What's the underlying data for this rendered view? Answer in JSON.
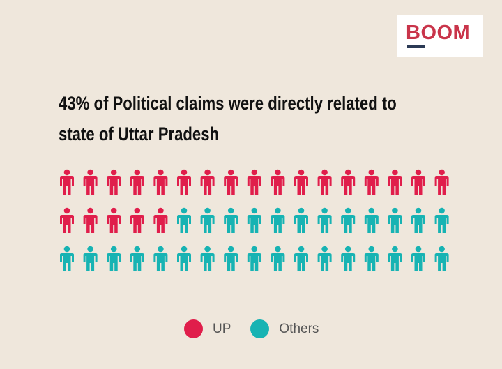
{
  "logo": {
    "text": "BOOM"
  },
  "chart_data": {
    "type": "pictograph",
    "title": "43% of Political claims were directly related to state of Uttar Pradesh",
    "title_lines": [
      "43% of Political claims were directly related to",
      "state of Uttar Pradesh"
    ],
    "total_icons": 51,
    "icons_per_row": 17,
    "series": [
      {
        "name": "UP",
        "count": 22,
        "color": "#e01e4b"
      },
      {
        "name": "Others",
        "count": 29,
        "color": "#17b3b3"
      }
    ],
    "legend_position": "bottom-center"
  }
}
